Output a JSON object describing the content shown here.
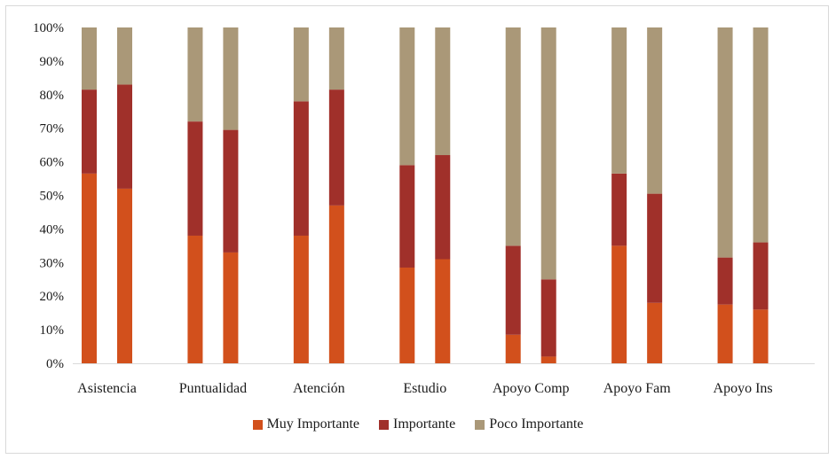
{
  "chart_data": {
    "type": "bar",
    "stacked": true,
    "categories": [
      "Asistencia",
      "Puntualidad",
      "Atención",
      "Estudio",
      "Apoyo Comp",
      "Apoyo Fam",
      "Apoyo Ins"
    ],
    "bars_per_category": 2,
    "y_ticks": [
      "0%",
      "10%",
      "20%",
      "30%",
      "40%",
      "50%",
      "60%",
      "70%",
      "80%",
      "90%",
      "100%"
    ],
    "ylim": [
      0,
      100
    ],
    "grid": false,
    "legend_position": "bottom",
    "series": [
      {
        "name": "Muy Importante",
        "color": "#d2501c",
        "values": [
          [
            56.5,
            52
          ],
          [
            38,
            33
          ],
          [
            38,
            47
          ],
          [
            28.5,
            31
          ],
          [
            8.5,
            2
          ],
          [
            35,
            18
          ],
          [
            17.5,
            16
          ]
        ]
      },
      {
        "name": "Importante",
        "color": "#a0302a",
        "values": [
          [
            25,
            31
          ],
          [
            34,
            36.5
          ],
          [
            40,
            34.5
          ],
          [
            30.5,
            31
          ],
          [
            26.5,
            23
          ],
          [
            21.5,
            32.5
          ],
          [
            14,
            20
          ]
        ]
      },
      {
        "name": "Poco Importante",
        "color": "#aa9878",
        "values": [
          [
            18.5,
            17
          ],
          [
            28,
            30.5
          ],
          [
            22,
            18.5
          ],
          [
            41,
            38
          ],
          [
            65,
            75
          ],
          [
            43.5,
            49.5
          ],
          [
            68.5,
            64
          ]
        ]
      }
    ]
  }
}
